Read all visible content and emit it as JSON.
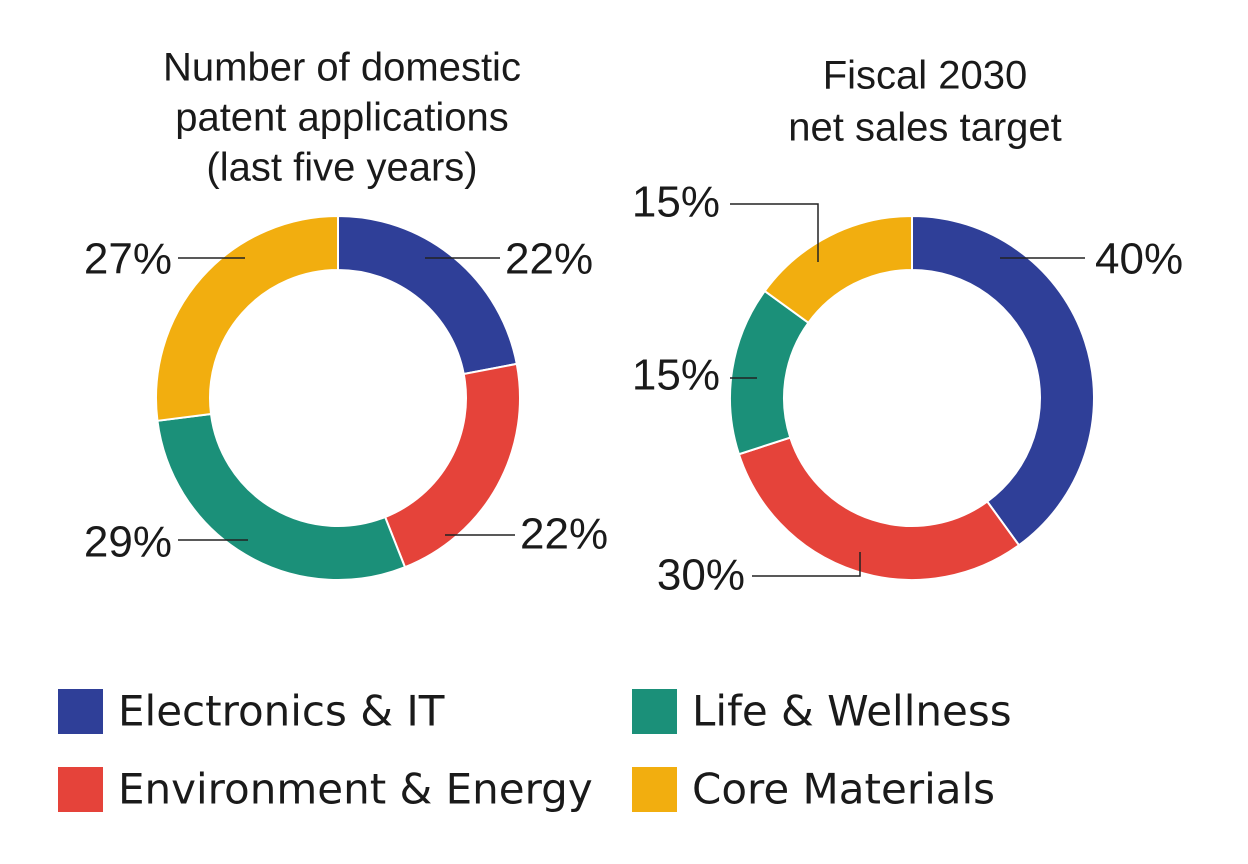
{
  "chart_data": [
    {
      "type": "pie",
      "donut": true,
      "title": [
        "Number of domestic",
        "patent applications",
        "(last five years)"
      ],
      "values": [
        22,
        22,
        29,
        27
      ],
      "value_labels": [
        "22%",
        "22%",
        "29%",
        "27%"
      ]
    },
    {
      "type": "pie",
      "donut": true,
      "title": [
        "Fiscal 2030",
        "net sales target"
      ],
      "values": [
        40,
        30,
        15,
        15
      ],
      "value_labels": [
        "40%",
        "30%",
        "15%",
        "15%"
      ]
    }
  ],
  "legend": {
    "labels": [
      "Electronics & IT",
      "Environment & Energy",
      "Life & Wellness",
      "Core Materials"
    ],
    "colors": [
      "#2f3f98",
      "#e5433a",
      "#1b9079",
      "#f2ae0f"
    ]
  }
}
